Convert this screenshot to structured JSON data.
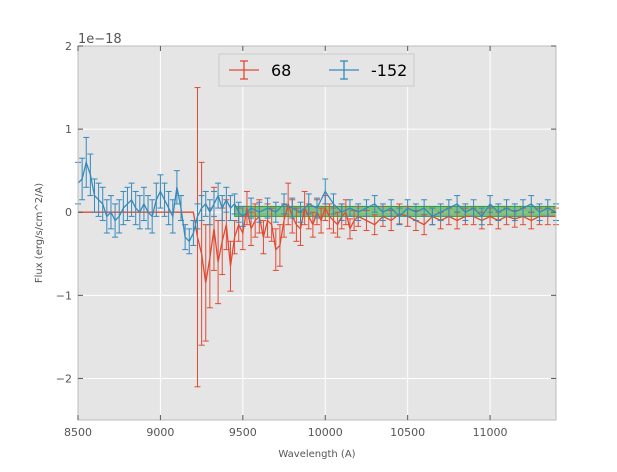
{
  "chart_data": {
    "type": "line",
    "xlabel": "Wavelength (A)",
    "ylabel": "Flux (erg/s/cm^2/A)",
    "offset_text": "1e−18",
    "xlim": [
      8500,
      11400
    ],
    "ylim": [
      -2.5,
      2.0
    ],
    "x_ticks": [
      {
        "value": 8500,
        "label": "8500"
      },
      {
        "value": 9000,
        "label": "9000"
      },
      {
        "value": 9500,
        "label": "9500"
      },
      {
        "value": 10000,
        "label": "10000"
      },
      {
        "value": 10500,
        "label": "10500"
      },
      {
        "value": 11000,
        "label": "11000"
      }
    ],
    "y_ticks": [
      {
        "value": 2,
        "label": "2"
      },
      {
        "value": 1,
        "label": "1"
      },
      {
        "value": 0,
        "label": "0"
      },
      {
        "value": -1,
        "label": "−1"
      },
      {
        "value": -2,
        "label": "−2"
      }
    ],
    "grid": true,
    "legend_position": "top-center",
    "background_color": "#e5e5e5",
    "grid_color": "#ffffff",
    "band": {
      "x_range": [
        9450,
        11400
      ],
      "y_range": [
        -0.05,
        0.07
      ],
      "color": "#2ca02c"
    },
    "series": [
      {
        "name": "68",
        "color": "#e24a33",
        "x": [
          8500,
          8600,
          8700,
          8800,
          8900,
          9000,
          9100,
          9200,
          9225,
          9250,
          9275,
          9300,
          9325,
          9350,
          9375,
          9400,
          9425,
          9450,
          9475,
          9500,
          9525,
          9550,
          9575,
          9600,
          9625,
          9650,
          9675,
          9700,
          9725,
          9750,
          9775,
          9800,
          9825,
          9850,
          9875,
          9900,
          9925,
          9950,
          9975,
          10000,
          10025,
          10050,
          10075,
          10100,
          10125,
          10150,
          10175,
          10200,
          10250,
          10300,
          10350,
          10400,
          10450,
          10500,
          10550,
          10600,
          10650,
          10700,
          10750,
          10800,
          10850,
          10900,
          10950,
          11000,
          11050,
          11100,
          11150,
          11200,
          11250,
          11300,
          11350,
          11400
        ],
        "y": [
          0,
          0,
          0,
          0,
          0,
          0,
          0,
          0,
          -0.3,
          -0.5,
          -0.85,
          -0.55,
          -0.2,
          -0.6,
          -0.35,
          -0.15,
          -0.65,
          -0.3,
          -0.15,
          -0.25,
          0.05,
          -0.2,
          -0.1,
          -0.05,
          -0.3,
          -0.1,
          -0.15,
          -0.45,
          -0.4,
          -0.1,
          0.1,
          -0.05,
          -0.15,
          -0.2,
          0.05,
          -0.05,
          -0.15,
          0,
          -0.1,
          0.05,
          -0.05,
          -0.1,
          -0.15,
          -0.05,
          0,
          -0.2,
          -0.1,
          -0.05,
          -0.1,
          -0.15,
          -0.05,
          -0.1,
          -0.02,
          -0.05,
          -0.1,
          -0.15,
          -0.05,
          -0.1,
          -0.05,
          -0.1,
          -0.05,
          -0.05,
          -0.1,
          -0.05,
          -0.1,
          -0.05,
          -0.08,
          -0.05,
          -0.1,
          -0.05,
          -0.05,
          -0.05
        ],
        "yerr": [
          0,
          0,
          0,
          0,
          0,
          0,
          0,
          0,
          1.8,
          1.1,
          0.7,
          0.6,
          0.5,
          0.5,
          0.4,
          0.3,
          0.3,
          0.2,
          0.2,
          0.2,
          0.2,
          0.2,
          0.2,
          0.2,
          0.2,
          0.2,
          0.2,
          0.25,
          0.25,
          0.2,
          0.25,
          0.2,
          0.2,
          0.2,
          0.2,
          0.15,
          0.15,
          0.15,
          0.15,
          0.15,
          0.15,
          0.15,
          0.15,
          0.15,
          0.15,
          0.12,
          0.12,
          0.12,
          0.12,
          0.12,
          0.12,
          0.12,
          0.12,
          0.12,
          0.12,
          0.12,
          0.1,
          0.1,
          0.1,
          0.1,
          0.1,
          0.1,
          0.1,
          0.1,
          0.1,
          0.1,
          0.1,
          0.1,
          0.1,
          0.1,
          0.1,
          0.1
        ]
      },
      {
        "name": "-152",
        "color": "#348abd",
        "x": [
          8500,
          8525,
          8550,
          8575,
          8600,
          8625,
          8650,
          8675,
          8700,
          8725,
          8750,
          8775,
          8800,
          8825,
          8850,
          8875,
          8900,
          8925,
          8950,
          8975,
          9000,
          9025,
          9050,
          9075,
          9100,
          9125,
          9150,
          9175,
          9200,
          9225,
          9250,
          9275,
          9300,
          9325,
          9350,
          9375,
          9400,
          9425,
          9450,
          9475,
          9500,
          9550,
          9600,
          9650,
          9700,
          9750,
          9800,
          9850,
          9900,
          9950,
          10000,
          10050,
          10100,
          10150,
          10200,
          10250,
          10300,
          10350,
          10400,
          10450,
          10500,
          10550,
          10600,
          10650,
          10700,
          10750,
          10800,
          10850,
          10900,
          10950,
          11000,
          11050,
          11100,
          11150,
          11200,
          11250,
          11300,
          11350,
          11400
        ],
        "y": [
          0.35,
          0.4,
          0.6,
          0.45,
          0.2,
          0.15,
          0.1,
          -0.05,
          0,
          -0.1,
          -0.05,
          0.05,
          0.1,
          0.15,
          0.05,
          0,
          0.1,
          0,
          -0.05,
          0.15,
          0.25,
          0.15,
          0.05,
          -0.05,
          0.3,
          0.05,
          -0.3,
          -0.35,
          -0.25,
          -0.05,
          0.05,
          0.1,
          0,
          0.1,
          0.2,
          0.05,
          0.15,
          0.05,
          0.1,
          0,
          -0.05,
          0.05,
          0,
          0.05,
          0,
          0.1,
          0.05,
          0,
          0.1,
          0.05,
          0.25,
          0.1,
          0,
          0.05,
          0,
          0.05,
          0.1,
          0,
          0.05,
          -0.05,
          0.05,
          0,
          0.05,
          -0.05,
          0,
          0.05,
          0.1,
          0,
          0.05,
          -0.05,
          0.1,
          0,
          0.05,
          0,
          0.05,
          0.1,
          0,
          0.05,
          0
        ],
        "yerr": [
          0.25,
          0.25,
          0.3,
          0.25,
          0.2,
          0.2,
          0.2,
          0.2,
          0.2,
          0.2,
          0.2,
          0.2,
          0.2,
          0.2,
          0.2,
          0.2,
          0.2,
          0.2,
          0.2,
          0.2,
          0.2,
          0.2,
          0.2,
          0.2,
          0.2,
          0.15,
          0.15,
          0.15,
          0.15,
          0.15,
          0.15,
          0.15,
          0.15,
          0.15,
          0.15,
          0.15,
          0.15,
          0.15,
          0.12,
          0.12,
          0.12,
          0.12,
          0.12,
          0.12,
          0.12,
          0.12,
          0.12,
          0.12,
          0.12,
          0.12,
          0.15,
          0.12,
          0.1,
          0.1,
          0.1,
          0.1,
          0.1,
          0.1,
          0.1,
          0.1,
          0.1,
          0.1,
          0.1,
          0.1,
          0.1,
          0.1,
          0.1,
          0.1,
          0.1,
          0.1,
          0.1,
          0.1,
          0.1,
          0.1,
          0.1,
          0.1,
          0.1,
          0.1,
          0.1
        ]
      }
    ]
  }
}
